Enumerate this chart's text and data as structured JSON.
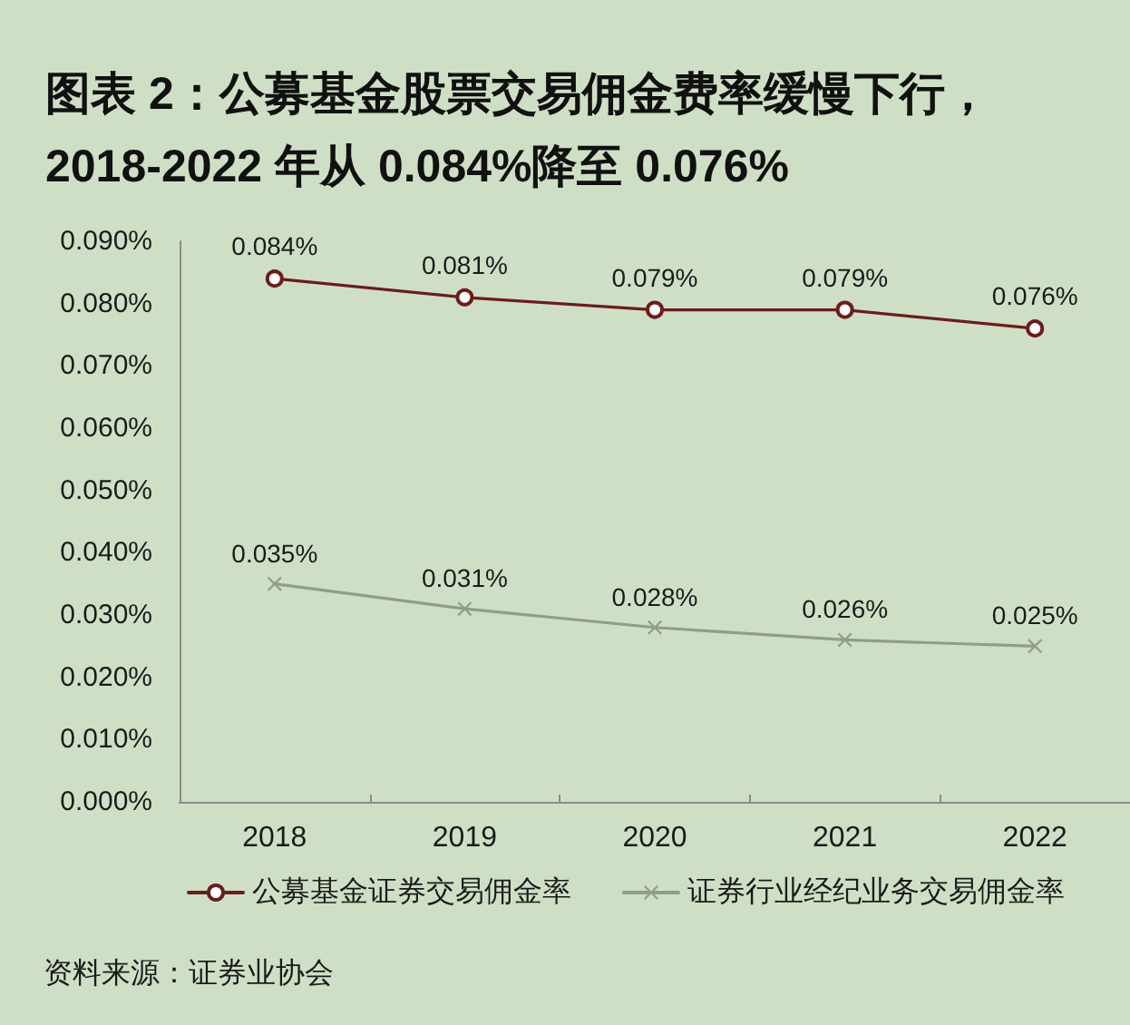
{
  "chart_data": {
    "type": "line",
    "title": "图表 2：公募基金股票交易佣金费率缓慢下行，\n2018-2022 年从 0.084%降至 0.076%",
    "categories": [
      "2018",
      "2019",
      "2020",
      "2021",
      "2022"
    ],
    "series": [
      {
        "name": "公募基金证券交易佣金率",
        "color": "#6b1c1c",
        "marker": "circle",
        "values": [
          0.084,
          0.081,
          0.079,
          0.079,
          0.076
        ],
        "value_labels": [
          "0.084%",
          "0.081%",
          "0.079%",
          "0.079%",
          "0.076%"
        ]
      },
      {
        "name": "证券行业经纪业务交易佣金率",
        "color": "#8f9e86",
        "marker": "cross",
        "values": [
          0.035,
          0.031,
          0.028,
          0.026,
          0.025
        ],
        "value_labels": [
          "0.035%",
          "0.031%",
          "0.028%",
          "0.026%",
          "0.025%"
        ]
      }
    ],
    "ylim": [
      0,
      0.09
    ],
    "yticks": [
      {
        "value": 0,
        "label": "0.000%"
      },
      {
        "value": 0.01,
        "label": "0.010%"
      },
      {
        "value": 0.02,
        "label": "0.020%"
      },
      {
        "value": 0.03,
        "label": "0.030%"
      },
      {
        "value": 0.04,
        "label": "0.040%"
      },
      {
        "value": 0.05,
        "label": "0.050%"
      },
      {
        "value": 0.06,
        "label": "0.060%"
      },
      {
        "value": 0.07,
        "label": "0.070%"
      },
      {
        "value": 0.08,
        "label": "0.080%"
      },
      {
        "value": 0.09,
        "label": "0.090%"
      }
    ],
    "grid": false,
    "legend": "bottom",
    "line_style": "solid",
    "annotations": [
      "资料来源：证券业协会"
    ]
  }
}
